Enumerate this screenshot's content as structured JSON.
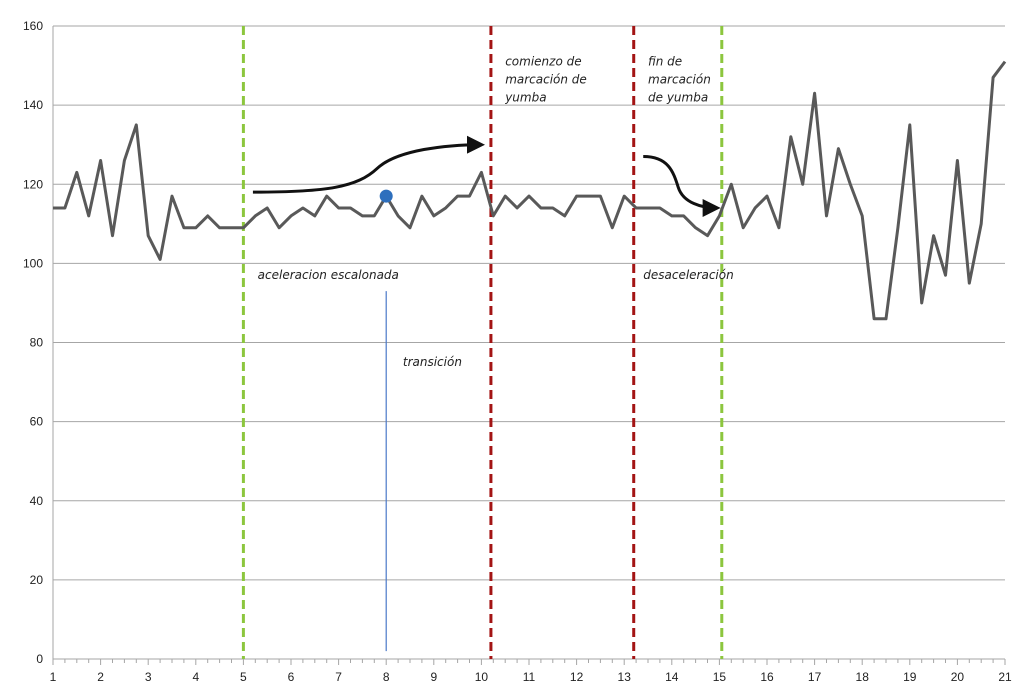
{
  "chart_data": {
    "type": "line",
    "title": "",
    "xlabel": "",
    "ylabel": "",
    "xlim": [
      1,
      21
    ],
    "ylim": [
      0,
      160
    ],
    "grid": true,
    "x_ticks": [
      1,
      2,
      3,
      4,
      5,
      6,
      7,
      8,
      9,
      10,
      11,
      12,
      13,
      14,
      15,
      16,
      17,
      18,
      19,
      20,
      21
    ],
    "y_ticks": [
      0,
      20,
      40,
      60,
      80,
      100,
      120,
      140,
      160
    ],
    "colors": {
      "series": "#595959",
      "green": "#8cc63e",
      "red": "#a31414",
      "marker": "#2e6fbd",
      "blue_line": "#4a78c8"
    },
    "series": [
      {
        "x": [
          1.0,
          1.25,
          1.5,
          1.75,
          2.0,
          2.25,
          2.5,
          2.75,
          3.0,
          3.25,
          3.5,
          3.75,
          4.0,
          4.25,
          4.5,
          4.75,
          5.0,
          5.25,
          5.5,
          5.75,
          6.0,
          6.25,
          6.5,
          6.75,
          7.0,
          7.25,
          7.5,
          7.75,
          8.0,
          8.25,
          8.5,
          8.75,
          9.0,
          9.25,
          9.5,
          9.75,
          10.0,
          10.25,
          10.5,
          10.75,
          11.0,
          11.25,
          11.5,
          11.75,
          12.0,
          12.25,
          12.5,
          12.75,
          13.0,
          13.25,
          13.5,
          13.75,
          14.0,
          14.25,
          14.5,
          14.75,
          15.0,
          15.25,
          15.5,
          15.75,
          16.0,
          16.25,
          16.5,
          16.75,
          17.0,
          17.25,
          17.5,
          17.75,
          18.0,
          18.25,
          18.5,
          18.75,
          19.0,
          19.25,
          19.5,
          19.75,
          20.0,
          20.25,
          20.5,
          20.75,
          21.0
        ],
        "y": [
          114,
          114,
          123,
          112,
          126,
          107,
          126,
          135,
          107,
          101,
          117,
          109,
          109,
          112,
          109,
          109,
          109,
          112,
          114,
          109,
          112,
          114,
          112,
          117,
          114,
          114,
          112,
          112,
          117,
          112,
          109,
          117,
          112,
          114,
          117,
          117,
          123,
          112,
          117,
          114,
          117,
          114,
          114,
          112,
          117,
          117,
          117,
          109,
          117,
          114,
          114,
          114,
          112,
          112,
          109,
          107,
          112,
          120,
          109,
          114,
          117,
          109,
          132,
          120,
          143,
          112,
          129,
          120,
          112,
          86,
          86,
          109,
          135,
          90,
          107,
          97,
          126,
          95,
          110,
          147,
          151
        ]
      }
    ],
    "markers": [
      {
        "x": 8.0,
        "y": 117
      }
    ],
    "vertical_lines": [
      {
        "x": 5.0,
        "color": "green",
        "style": "dashed"
      },
      {
        "x": 10.2,
        "color": "red",
        "style": "dashed"
      },
      {
        "x": 13.2,
        "color": "red",
        "style": "dashed"
      },
      {
        "x": 15.05,
        "color": "green",
        "style": "dashed"
      },
      {
        "x": 8.0,
        "color": "blue_line",
        "style": "solid",
        "y_from": 2,
        "y_to": 93
      }
    ],
    "arrows": [
      {
        "from": [
          5.2,
          118
        ],
        "to": [
          10.0,
          130
        ]
      },
      {
        "from": [
          13.4,
          127
        ],
        "to": [
          14.95,
          114
        ]
      }
    ],
    "annotations": [
      {
        "id": "aceleracion",
        "lines": [
          "aceleracion escalonada"
        ],
        "x": 5.3,
        "y": 96
      },
      {
        "id": "transicion",
        "lines": [
          "transición"
        ],
        "x": 8.35,
        "y": 74
      },
      {
        "id": "comienzo",
        "lines": [
          "comienzo de",
          "marcación de",
          "yumba"
        ],
        "x": 10.5,
        "y": 150
      },
      {
        "id": "fin",
        "lines": [
          "fin de",
          "marcación",
          "de yumba"
        ],
        "x": 13.5,
        "y": 150
      },
      {
        "id": "desaceleracion",
        "lines": [
          "desaceleración"
        ],
        "x": 13.4,
        "y": 96
      }
    ]
  }
}
